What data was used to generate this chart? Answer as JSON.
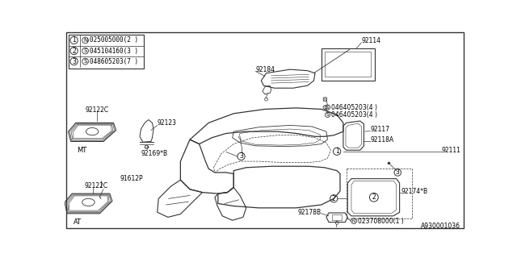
{
  "bg_color": "#ffffff",
  "line_color": "#333333",
  "text_color": "#000000",
  "diagram_id": "A930001036",
  "fs": 5.5,
  "fs_label": 6.0,
  "legend": [
    [
      "1",
      "N",
      "025005000(2 )"
    ],
    [
      "2",
      "S",
      "045104160(3 )"
    ],
    [
      "3",
      "S",
      "048605203(7 )"
    ]
  ]
}
